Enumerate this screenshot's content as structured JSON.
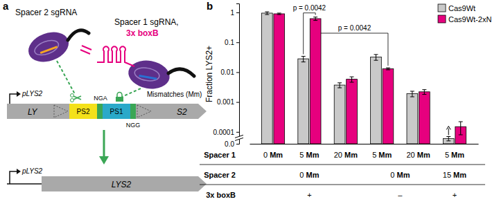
{
  "chart_data": {
    "type": "bar",
    "panel_label": "b",
    "y_label": "Fraction LYS2+",
    "category_label": "Spacer 1",
    "categories": [
      "0 Mm",
      "5 Mm",
      "20 Mm",
      "5 Mm",
      "20 Mm",
      "5 Mm"
    ],
    "series": [
      {
        "name": "Cas9Wt",
        "color": "#c9c9c9",
        "values": [
          0.95,
          0.028,
          0.0037,
          0.032,
          0.0019,
          6e-05
        ],
        "errors": [
          0.1,
          0.006,
          0.0007,
          0.007,
          0.0004,
          1e-05
        ]
      },
      {
        "name": "Cas9Wt-2xN",
        "color": "#e6007e",
        "values": [
          0.9,
          0.62,
          0.0058,
          0.013,
          0.0022,
          0.00015
        ],
        "errors": [
          0.05,
          0.08,
          0.0012,
          0.001,
          0.0004,
          7e-05
        ]
      }
    ],
    "log": "y",
    "ylim": [
      4e-05,
      2
    ],
    "yticks": [
      {
        "value": 4e-05,
        "label": "0.0"
      },
      0.0001,
      0.001,
      0.01,
      0.1,
      1
    ],
    "legend": "top-right",
    "annotations": [
      "p = 0.0042",
      "p = 0.0042"
    ],
    "table": {
      "rows": [
        {
          "label": "Spacer 2",
          "cells": [
            "0 Mm",
            null,
            null,
            "0 Mm",
            null,
            "15 Mm"
          ]
        },
        {
          "label": "3x boxB",
          "cells": [
            "+",
            null,
            null,
            "–",
            null,
            "+"
          ]
        }
      ]
    }
  },
  "diagram": {
    "panel_label": "a",
    "spacer2": "Spacer 2 sgRNA",
    "spacer1": "Spacer 1 sgRNA,",
    "boxb": "3x boxB",
    "mismatches": "Mismatches (Mm)",
    "pam2": "NGA",
    "pam1": "NGG",
    "promoter": "pLYS2",
    "gene_left": "LY",
    "ps2": "PS2",
    "ps1": "PS1",
    "gene_right": "S2",
    "product_promoter": "pLYS2",
    "product": "LYS2"
  }
}
